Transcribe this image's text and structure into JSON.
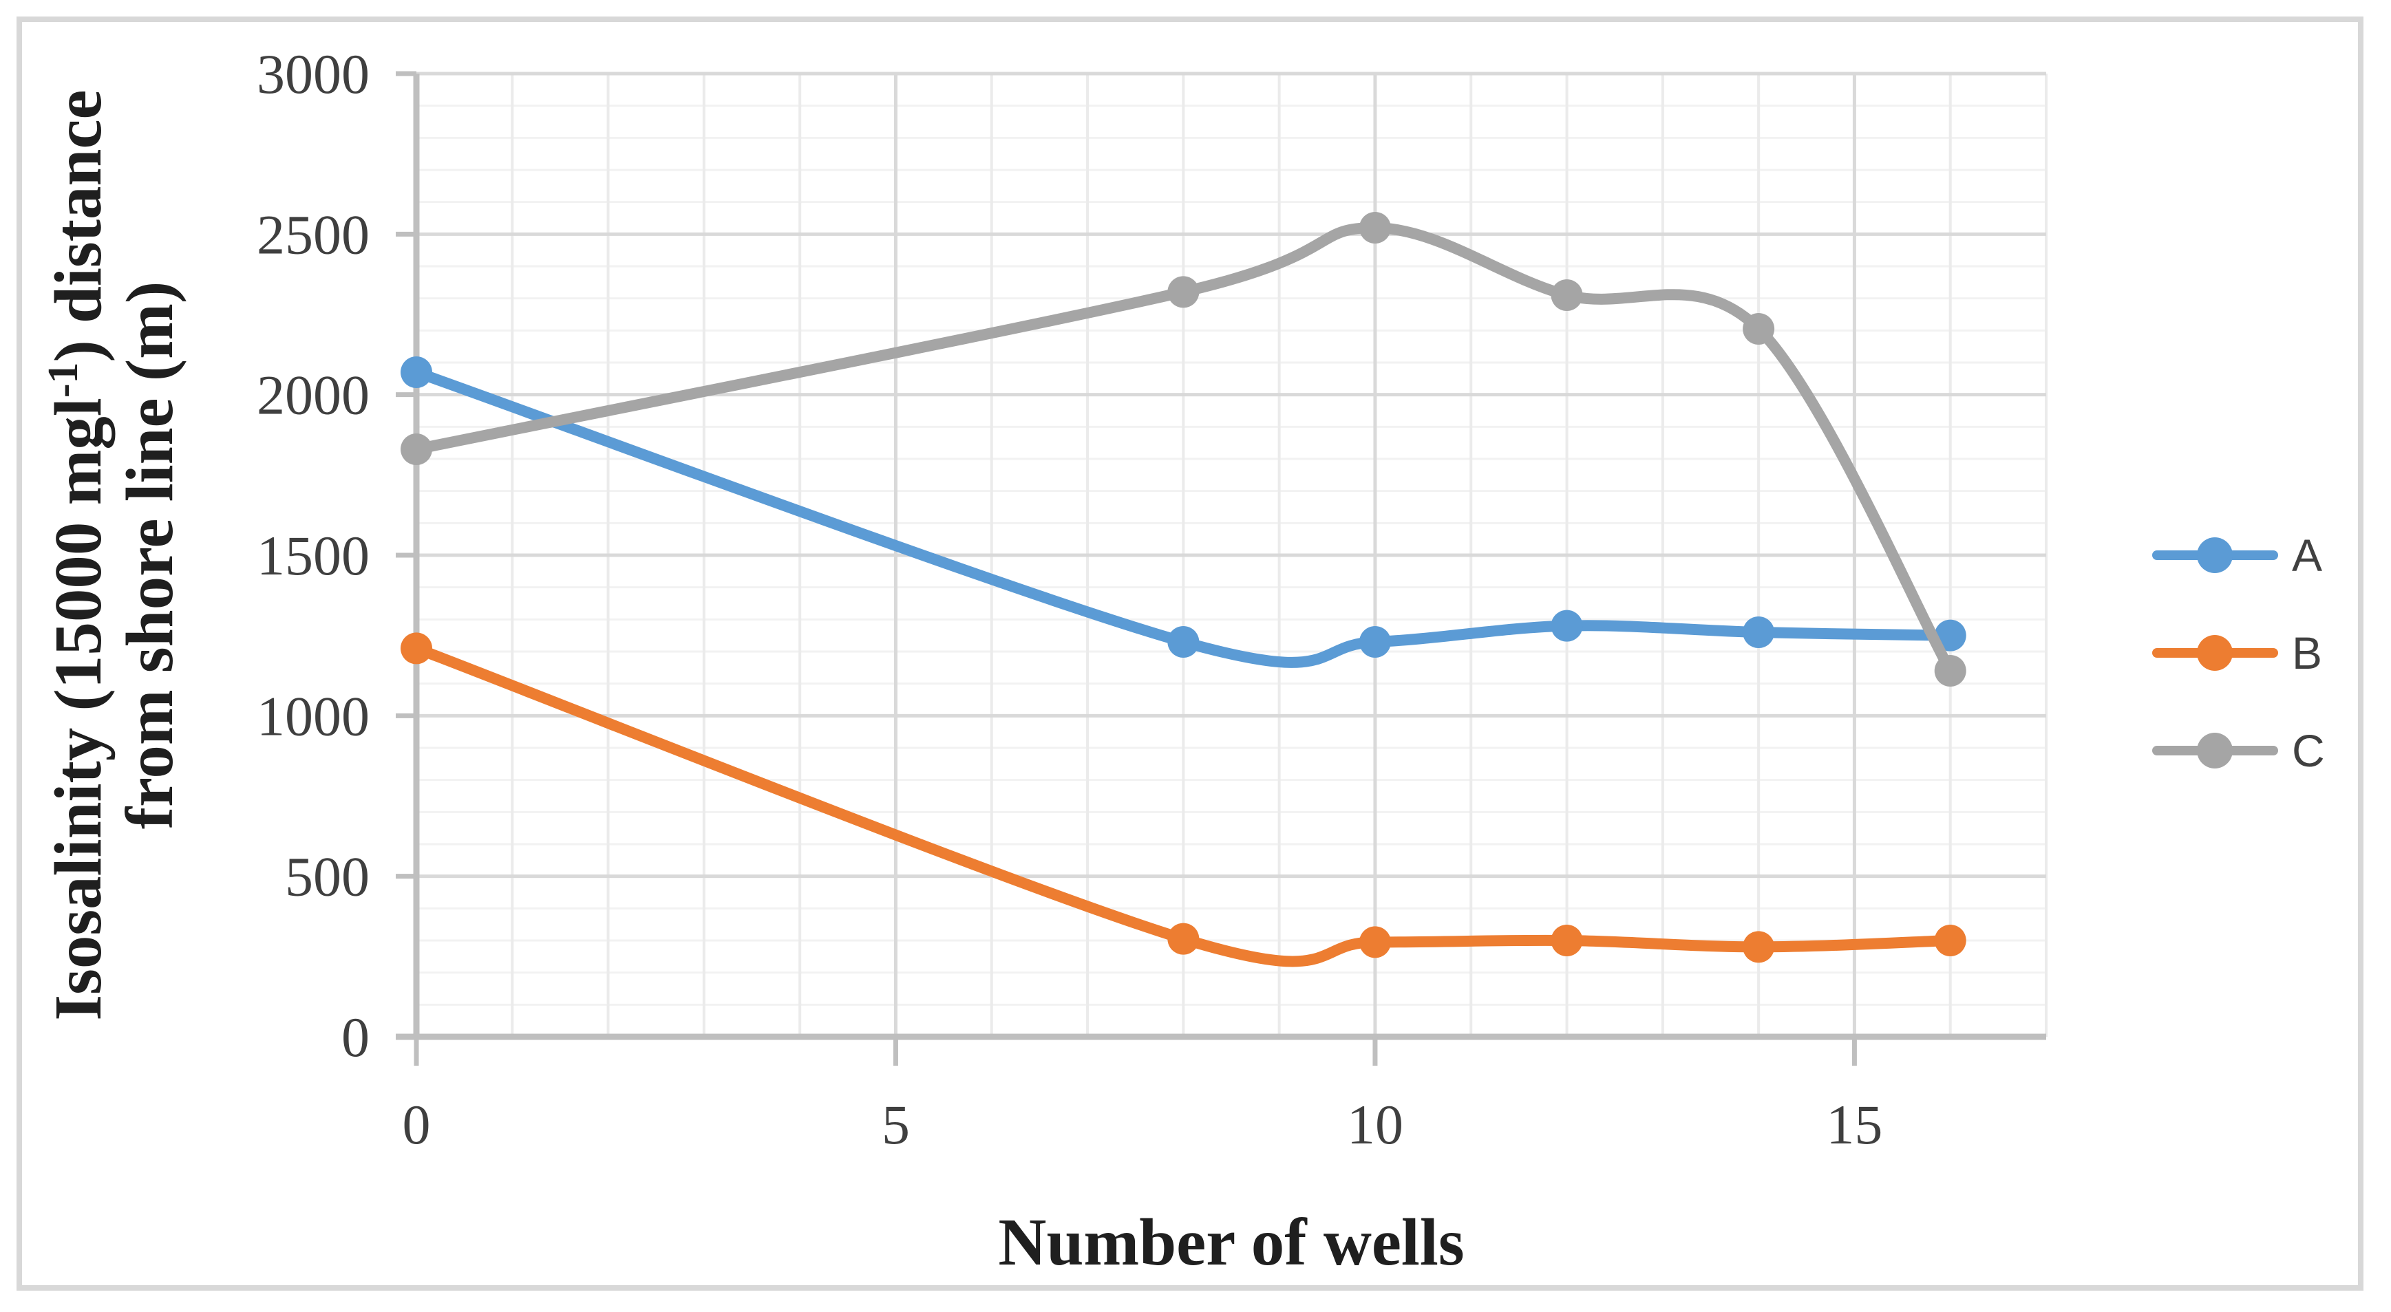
{
  "figure": {
    "frame_color": "#d8d8d8",
    "background": "#ffffff"
  },
  "chart_data": {
    "type": "line",
    "x": [
      0,
      8,
      10,
      12,
      14,
      16
    ],
    "series": [
      {
        "name": "A",
        "color": "#5B9BD5",
        "values": [
          2070,
          1230,
          1230,
          1280,
          1260,
          1250
        ]
      },
      {
        "name": "B",
        "color": "#ED7D31",
        "values": [
          1210,
          305,
          295,
          300,
          280,
          300
        ]
      },
      {
        "name": "C",
        "color": "#A5A5A5",
        "values": [
          1830,
          2320,
          2520,
          2310,
          2205,
          1140
        ]
      }
    ],
    "xlabel": "Number of wells",
    "ylabel": {
      "line1_pre": "Isosalinity (15000 mgl",
      "superscript": "-1",
      "line1_post": ") distance",
      "line2": "from shore line (m)"
    },
    "xlim": [
      0,
      17
    ],
    "ylim": [
      0,
      3000
    ],
    "x_major_ticks": [
      0,
      5,
      10,
      15
    ],
    "y_major_ticks": [
      0,
      500,
      1000,
      1500,
      2000,
      2500,
      3000
    ],
    "x_minor_step": 1,
    "y_minor_step": 100,
    "grid": true,
    "smooth": true,
    "marker": "circle",
    "legend_position": "right",
    "legend_labels": [
      "A",
      "B",
      "C"
    ]
  },
  "style": {
    "grid_minor_h_color": "#f2f2f2",
    "grid_minor_v_color": "#ebebeb",
    "grid_major_color": "#d9d9d9",
    "axis_color": "#bfbfbf",
    "tick_label_color": "#3f3f3f",
    "axis_title_color": "#1f1f1f",
    "legend_text_color": "#404040"
  }
}
